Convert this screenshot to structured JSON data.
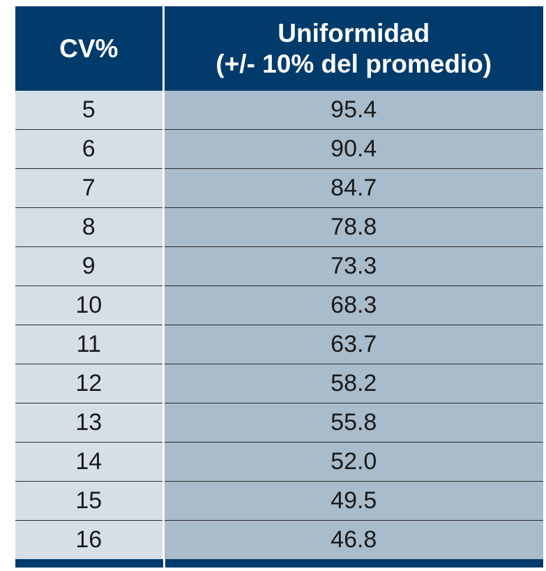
{
  "chart_data": {
    "type": "table",
    "columns": [
      {
        "label_lines": [
          "CV%"
        ]
      },
      {
        "label_lines": [
          "Uniformidad",
          "(+/- 10% del promedio)"
        ]
      }
    ],
    "rows": [
      {
        "cv": "5",
        "uniformidad": "95.4"
      },
      {
        "cv": "6",
        "uniformidad": "90.4"
      },
      {
        "cv": "7",
        "uniformidad": "84.7"
      },
      {
        "cv": "8",
        "uniformidad": "78.8"
      },
      {
        "cv": "9",
        "uniformidad": "73.3"
      },
      {
        "cv": "10",
        "uniformidad": "68.3"
      },
      {
        "cv": "11",
        "uniformidad": "63.7"
      },
      {
        "cv": "12",
        "uniformidad": "58.2"
      },
      {
        "cv": "13",
        "uniformidad": "55.8"
      },
      {
        "cv": "14",
        "uniformidad": "52.0"
      },
      {
        "cv": "15",
        "uniformidad": "49.5"
      },
      {
        "cv": "16",
        "uniformidad": "46.8"
      }
    ]
  },
  "colors": {
    "header": "#003b6b",
    "cv_cell": "#d6dfe8",
    "value_cell": "#a9bccb"
  }
}
